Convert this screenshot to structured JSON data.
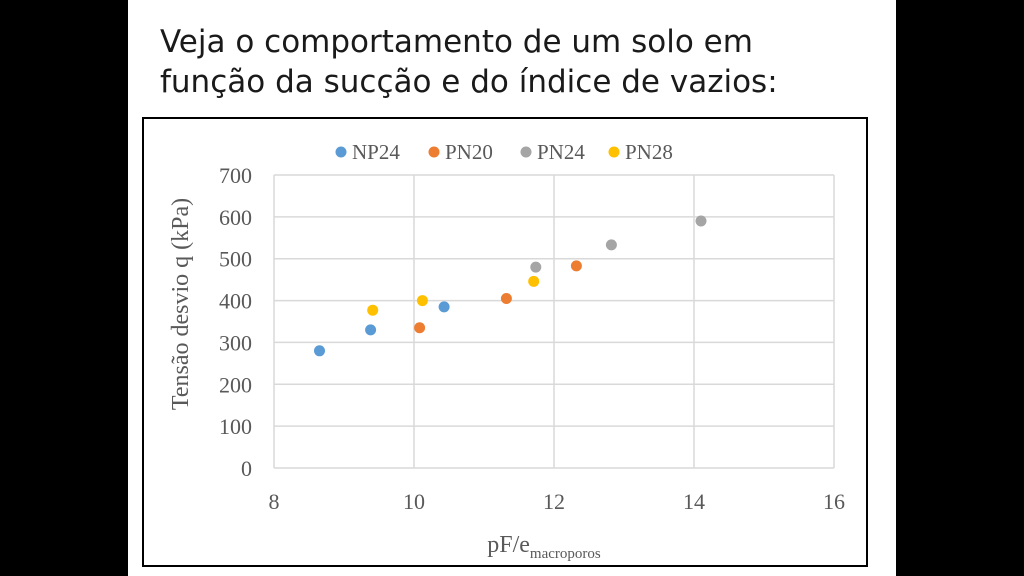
{
  "slide": {
    "title_line1": "Veja o comportamento de um solo em",
    "title_line2": "função da sucção e do índice de vazios:"
  },
  "chart_data": {
    "type": "scatter",
    "xlabel": "pF/e",
    "xlabel_subscript": "macroporos",
    "ylabel": "Tensão desvio q (kPa)",
    "xlim": [
      8,
      16
    ],
    "ylim": [
      0,
      700
    ],
    "x_ticks": [
      "8",
      "10",
      "12",
      "14",
      "16"
    ],
    "y_ticks": [
      "0",
      "100",
      "200",
      "300",
      "400",
      "500",
      "600",
      "700"
    ],
    "grid": true,
    "legend_position": "top",
    "series": [
      {
        "name": "NP24",
        "color": "#5b9bd5",
        "points": [
          [
            8.65,
            280
          ],
          [
            9.38,
            330
          ],
          [
            10.43,
            385
          ]
        ]
      },
      {
        "name": "PN20",
        "color": "#ed7d31",
        "points": [
          [
            10.08,
            335
          ],
          [
            11.32,
            405
          ],
          [
            12.32,
            483
          ]
        ]
      },
      {
        "name": "PN24",
        "color": "#a5a5a5",
        "points": [
          [
            11.74,
            480
          ],
          [
            12.82,
            533
          ],
          [
            14.1,
            590
          ]
        ]
      },
      {
        "name": "PN28",
        "color": "#ffc000",
        "points": [
          [
            9.41,
            377
          ],
          [
            10.12,
            400
          ],
          [
            11.71,
            446
          ]
        ]
      }
    ]
  }
}
